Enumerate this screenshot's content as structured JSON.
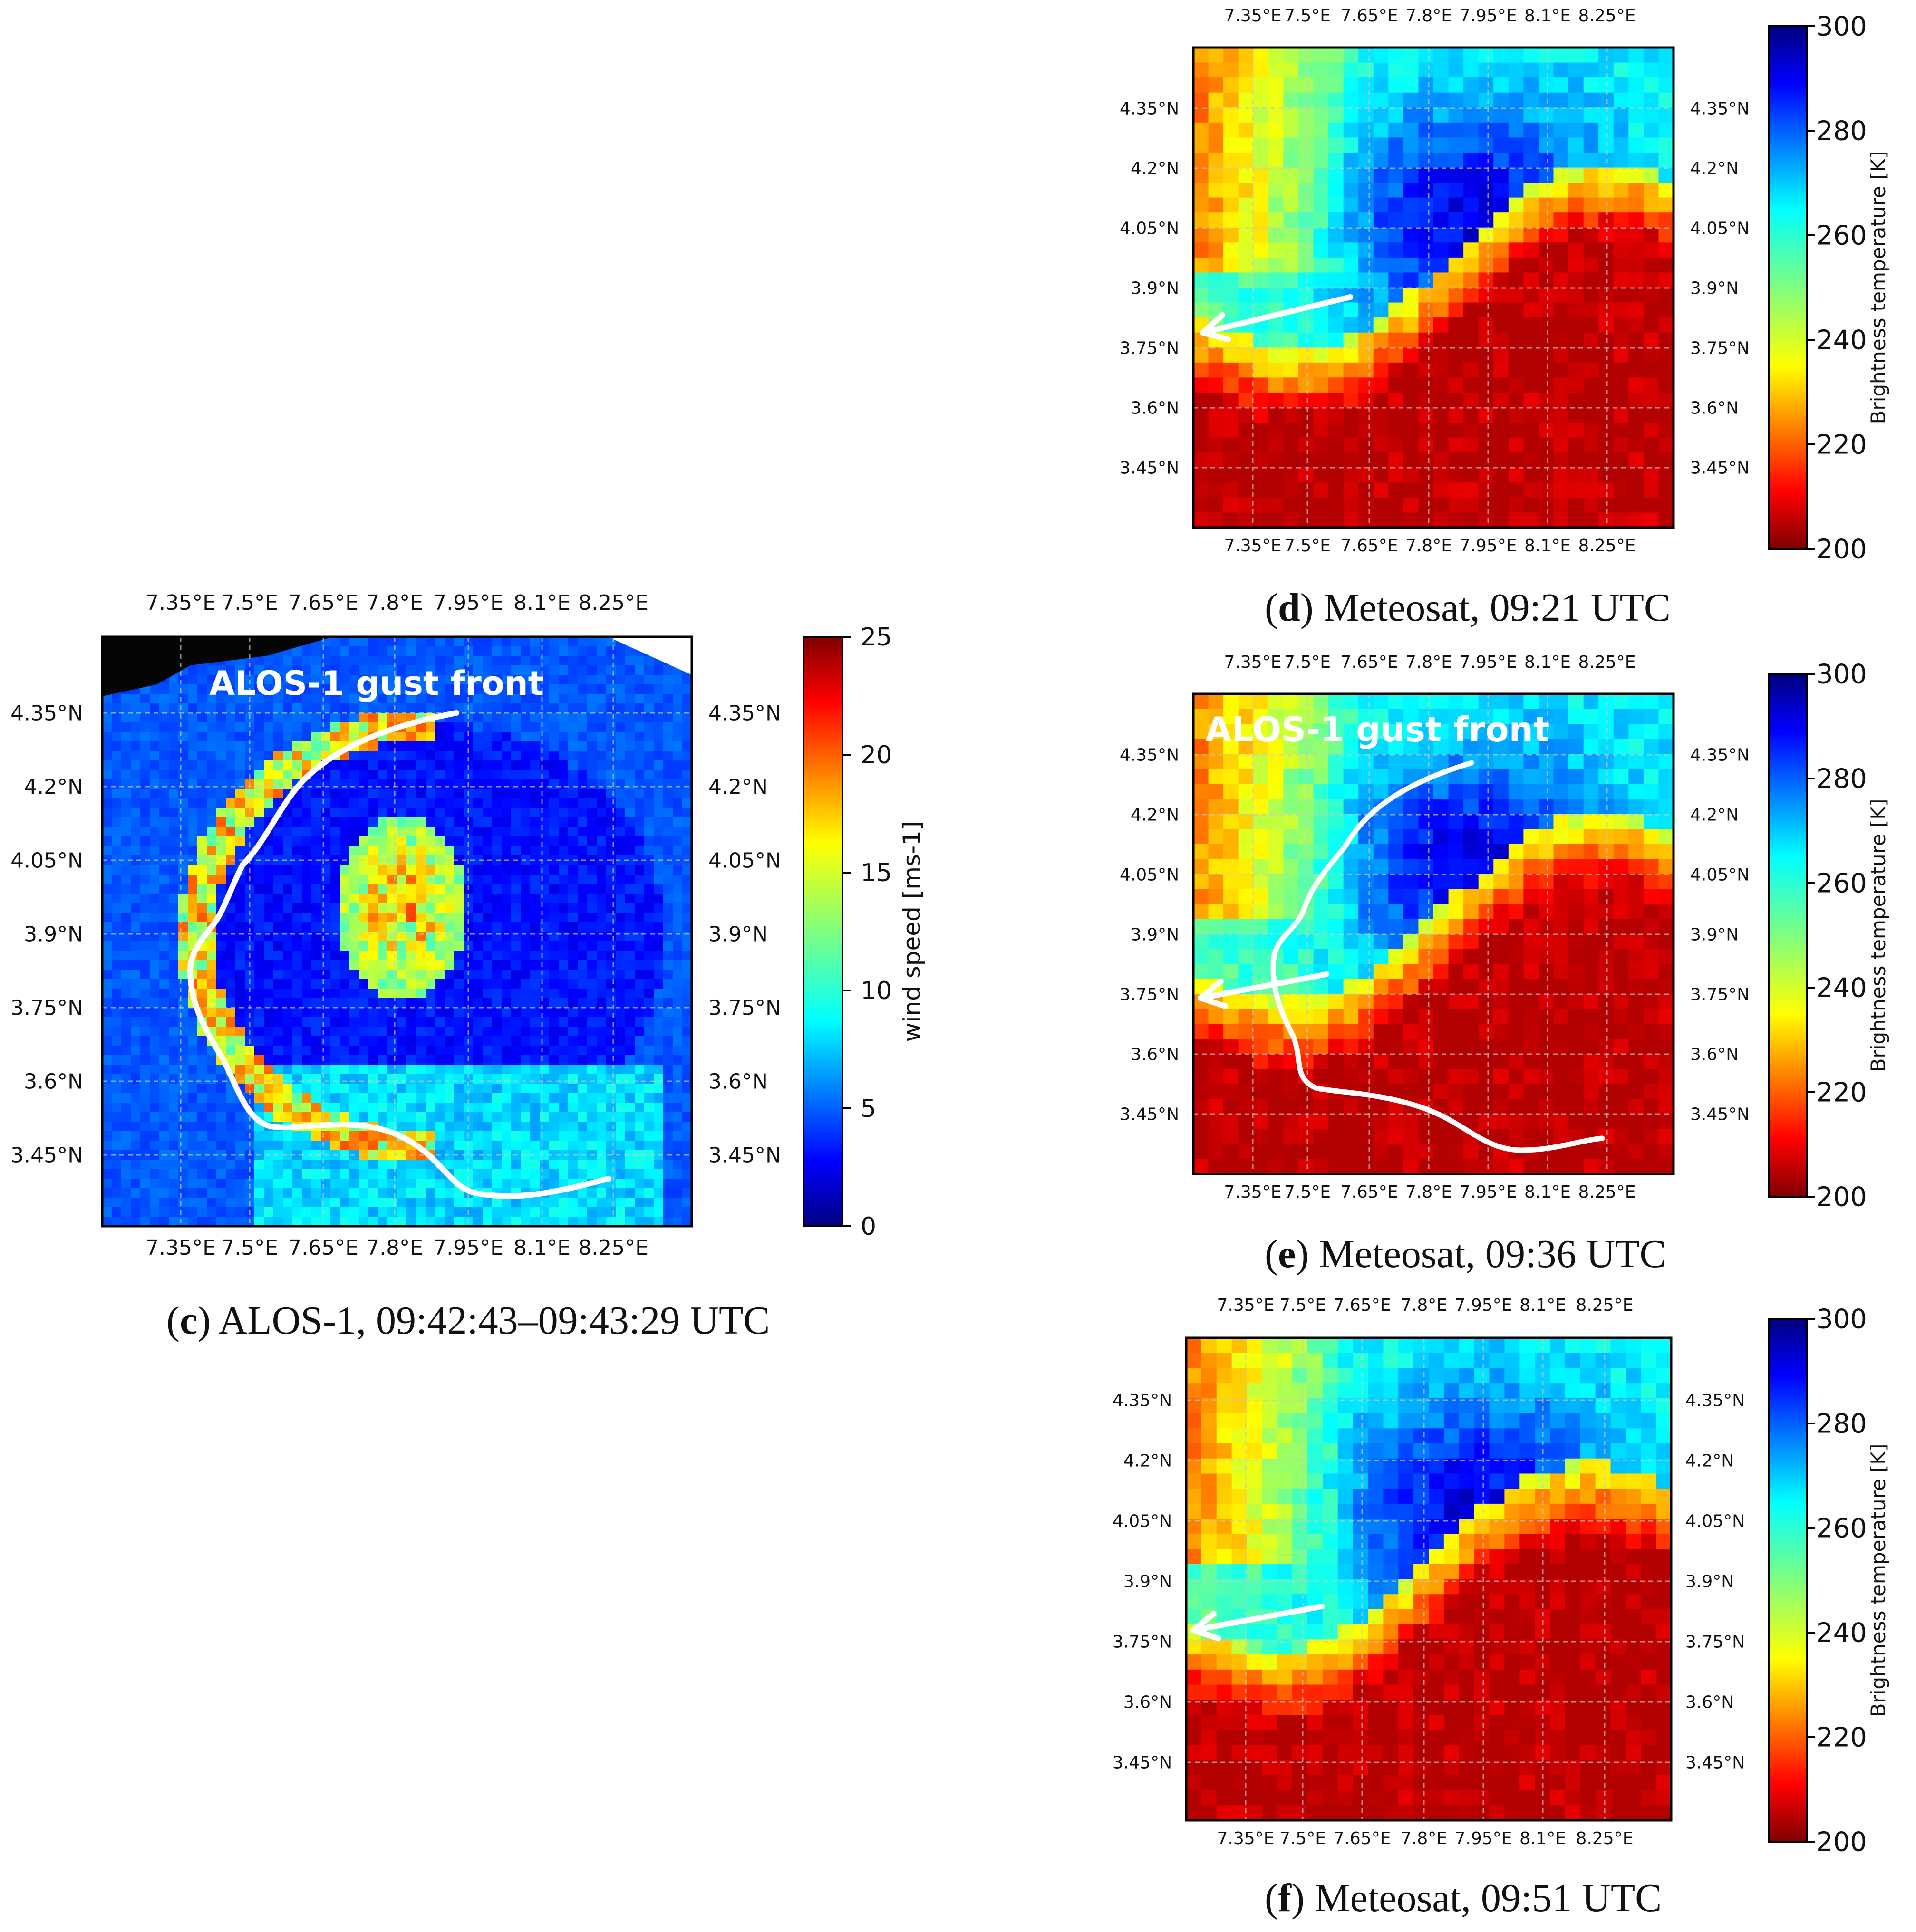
{
  "chart_data": [
    {
      "id": "c",
      "type": "heatmap",
      "caption": {
        "letter": "c",
        "text": "ALOS-1, 09:42:43–09:43:29 UTC"
      },
      "x_ticks": [
        "7.35°E",
        "7.5°E",
        "7.65°E",
        "7.8°E",
        "7.95°E",
        "8.1°E",
        "8.25°E"
      ],
      "y_ticks": [
        "4.35°N",
        "4.2°N",
        "4.05°N",
        "3.9°N",
        "3.75°N",
        "3.6°N",
        "3.45°N"
      ],
      "colorbar": {
        "label": "wind speed [ms-1]",
        "ticks": [
          "0",
          "5",
          "10",
          "15",
          "20",
          "25"
        ],
        "range": [
          0,
          25
        ]
      },
      "annotations": [
        "ALOS-1 gust front"
      ],
      "gust_front_line": true
    },
    {
      "id": "d",
      "type": "heatmap",
      "caption": {
        "letter": "d",
        "text": "Meteosat, 09:21 UTC"
      },
      "x_ticks": [
        "7.35°E",
        "7.5°E",
        "7.65°E",
        "7.8°E",
        "7.95°E",
        "8.1°E",
        "8.25°E"
      ],
      "y_ticks": [
        "4.35°N",
        "4.2°N",
        "4.05°N",
        "3.9°N",
        "3.75°N",
        "3.6°N",
        "3.45°N"
      ],
      "colorbar": {
        "label": "Brightness temperature [K]",
        "ticks": [
          "200",
          "220",
          "240",
          "260",
          "280",
          "300"
        ],
        "range": [
          200,
          300
        ]
      },
      "annotations": [],
      "arrow": true
    },
    {
      "id": "e",
      "type": "heatmap",
      "caption": {
        "letter": "e",
        "text": "Meteosat, 09:36 UTC"
      },
      "x_ticks": [
        "7.35°E",
        "7.5°E",
        "7.65°E",
        "7.8°E",
        "7.95°E",
        "8.1°E",
        "8.25°E"
      ],
      "y_ticks": [
        "4.35°N",
        "4.2°N",
        "4.05°N",
        "3.9°N",
        "3.75°N",
        "3.6°N",
        "3.45°N"
      ],
      "colorbar": {
        "label": "Brightness temperature [K]",
        "ticks": [
          "200",
          "220",
          "240",
          "260",
          "280",
          "300"
        ],
        "range": [
          200,
          300
        ]
      },
      "annotations": [
        "ALOS-1 gust front"
      ],
      "arrow": true,
      "gust_front_line": true
    },
    {
      "id": "f",
      "type": "heatmap",
      "caption": {
        "letter": "f",
        "text": "Meteosat, 09:51 UTC"
      },
      "x_ticks": [
        "7.35°E",
        "7.5°E",
        "7.65°E",
        "7.8°E",
        "7.95°E",
        "8.1°E",
        "8.25°E"
      ],
      "y_ticks": [
        "4.35°N",
        "4.2°N",
        "4.05°N",
        "3.9°N",
        "3.75°N",
        "3.6°N",
        "3.45°N"
      ],
      "colorbar": {
        "label": "Brightness temperature [K]",
        "ticks": [
          "200",
          "220",
          "240",
          "260",
          "280",
          "300"
        ],
        "range": [
          200,
          300
        ]
      },
      "annotations": [],
      "arrow": true
    }
  ],
  "colors": {
    "gust_front": "#ffffff",
    "grid": "#c8c8c8"
  }
}
